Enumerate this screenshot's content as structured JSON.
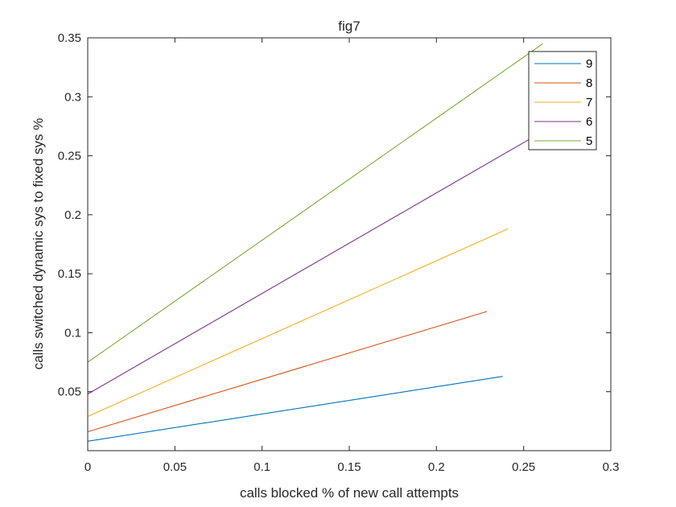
{
  "chart_data": {
    "type": "line",
    "title": "fig7",
    "xlabel": "calls blocked % of new call attempts",
    "ylabel": "calls switched dynamic sys to fixed sys %",
    "xlim": [
      0,
      0.3
    ],
    "ylim": [
      0,
      0.35
    ],
    "xticks": [
      "0",
      "0.05",
      "0.1",
      "0.15",
      "0.2",
      "0.25",
      "0.3"
    ],
    "yticks": [
      "0.05",
      "0.1",
      "0.15",
      "0.2",
      "0.25",
      "0.3",
      "0.35"
    ],
    "legend_position": "top-right",
    "series": [
      {
        "name": "9",
        "color": "#0072BD",
        "x": [
          0,
          0.238
        ],
        "y": [
          0.008,
          0.063
        ]
      },
      {
        "name": "8",
        "color": "#D95319",
        "x": [
          0,
          0.229
        ],
        "y": [
          0.016,
          0.118
        ]
      },
      {
        "name": "7",
        "color": "#EDB120",
        "x": [
          0,
          0.241
        ],
        "y": [
          0.029,
          0.188
        ]
      },
      {
        "name": "6",
        "color": "#7E2F8E",
        "x": [
          0,
          0.258
        ],
        "y": [
          0.048,
          0.268
        ]
      },
      {
        "name": "5",
        "color": "#77AC30",
        "x": [
          0,
          0.261
        ],
        "y": [
          0.075,
          0.345
        ]
      }
    ]
  }
}
